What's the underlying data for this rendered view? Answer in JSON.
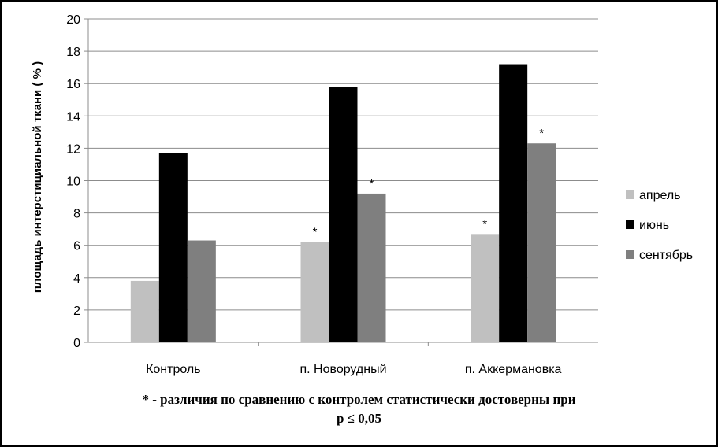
{
  "chart_data": {
    "type": "bar",
    "categories": [
      "Контроль",
      "п. Новорудный",
      "п. Аккермановка"
    ],
    "series": [
      {
        "name": "апрель",
        "color": "#c0c0c0",
        "values": [
          3.8,
          6.2,
          6.7
        ],
        "significant": [
          false,
          true,
          true
        ]
      },
      {
        "name": "июнь",
        "color": "#000000",
        "values": [
          11.7,
          15.8,
          17.2
        ],
        "significant": [
          false,
          false,
          false
        ]
      },
      {
        "name": "сентябрь",
        "color": "#7f7f7f",
        "values": [
          6.3,
          9.2,
          12.3
        ],
        "significant": [
          false,
          true,
          true
        ]
      }
    ],
    "ylabel": "площадь интерстициальной ткани ( % )",
    "xlabel": "",
    "ylim": [
      0,
      20
    ],
    "yticks": [
      0,
      2,
      4,
      6,
      8,
      10,
      12,
      14,
      16,
      18,
      20
    ],
    "grid": true,
    "legend_position": "right",
    "significance_marker": "*"
  },
  "footnote": {
    "line1": "* - различия по сравнению с контролем статистически достоверны при",
    "line2": "p ≤ 0,05"
  }
}
